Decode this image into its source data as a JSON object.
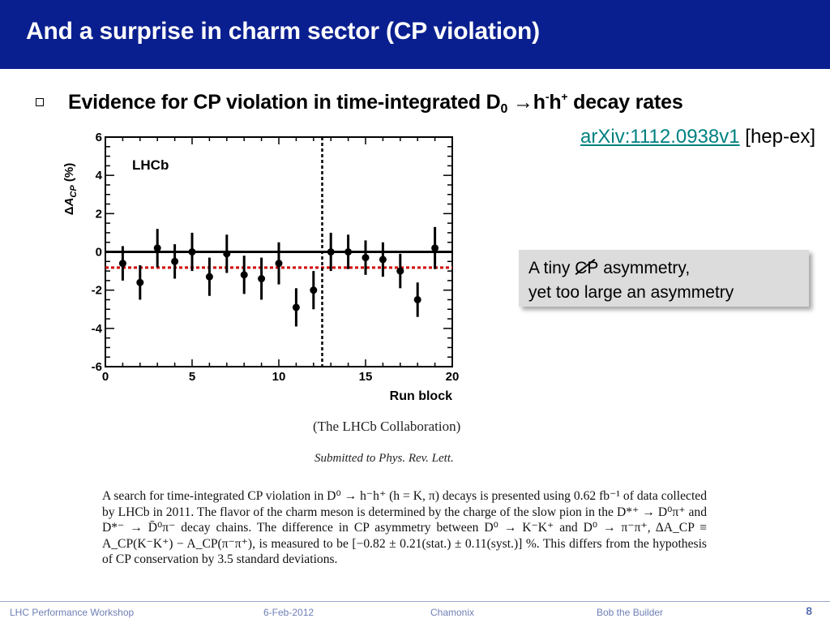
{
  "title": "And a surprise in charm sector (CP violation)",
  "bullet": {
    "pre": "Evidence for CP violation in time-integrated D",
    "sub": "0",
    "arrow": "→",
    "h1": "h",
    "sup1": "-",
    "h2": "h",
    "sup2": "+",
    "post": " decay rates"
  },
  "reference": {
    "link": "arXiv:1112.0938v1",
    "tag": " [hep-ex]"
  },
  "callout": {
    "line1_pre": "A tiny ",
    "cp": "CP",
    "line1_post": " asymmetry,",
    "line2": "yet too large an asymmetry"
  },
  "chart_data": {
    "type": "scatter",
    "label": "LHCb",
    "xlabel": "Run block",
    "ylabel": "ΔA_CP (%)",
    "xlim": [
      0,
      20
    ],
    "ylim": [
      -6,
      6
    ],
    "x_ticks": [
      0,
      5,
      10,
      15,
      20
    ],
    "y_ticks": [
      -6,
      -4,
      -2,
      0,
      2,
      4,
      6
    ],
    "points": [
      {
        "x": 1,
        "y": -0.6,
        "err": 0.9
      },
      {
        "x": 2,
        "y": -1.6,
        "err": 0.9
      },
      {
        "x": 3,
        "y": 0.2,
        "err": 1.0
      },
      {
        "x": 4,
        "y": -0.5,
        "err": 0.9
      },
      {
        "x": 5,
        "y": 0.0,
        "err": 1.0
      },
      {
        "x": 6,
        "y": -1.3,
        "err": 1.0
      },
      {
        "x": 7,
        "y": -0.1,
        "err": 1.0
      },
      {
        "x": 8,
        "y": -1.2,
        "err": 1.0
      },
      {
        "x": 9,
        "y": -1.4,
        "err": 1.1
      },
      {
        "x": 10,
        "y": -0.6,
        "err": 1.1
      },
      {
        "x": 11,
        "y": -2.9,
        "err": 1.0
      },
      {
        "x": 12,
        "y": -2.0,
        "err": 1.0
      },
      {
        "x": 13,
        "y": 0.0,
        "err": 1.0
      },
      {
        "x": 14,
        "y": 0.0,
        "err": 0.9
      },
      {
        "x": 15,
        "y": -0.3,
        "err": 0.9
      },
      {
        "x": 16,
        "y": -0.4,
        "err": 0.9
      },
      {
        "x": 17,
        "y": -1.0,
        "err": 0.9
      },
      {
        "x": 18,
        "y": -2.5,
        "err": 0.9
      },
      {
        "x": 19,
        "y": 0.2,
        "err": 1.1
      }
    ],
    "reference_line_y": 0,
    "mean_line_y": -0.82,
    "divider_x": 12.5
  },
  "collaboration": "(The LHCb Collaboration)",
  "submitted": "Submitted to Phys. Rev. Lett.",
  "abstract": "A search for time-integrated CP violation in D⁰ → h⁻h⁺ (h = K, π) decays is presented using 0.62 fb⁻¹ of data collected by LHCb in 2011. The flavor of the charm meson is determined by the charge of the slow pion in the D*⁺ → D⁰π⁺ and D*⁻ → D̄⁰π⁻ decay chains. The difference in CP asymmetry between D⁰ → K⁻K⁺ and D⁰ → π⁻π⁺, ΔA_CP ≡ A_CP(K⁻K⁺) − A_CP(π⁻π⁺), is measured to be [−0.82 ± 0.21(stat.) ± 0.11(syst.)] %. This differs from the hypothesis of CP conservation by 3.5 standard deviations.",
  "footer": {
    "workshop": "LHC Performance Workshop",
    "date": "6-Feb-2012",
    "place": "Chamonix",
    "author": "Bob the Builder",
    "page": "8"
  },
  "colors": {
    "title_bg": "#0a1f8f",
    "link": "#008080",
    "mean_line": "#d00000",
    "footer_text": "#6f7fb5"
  }
}
